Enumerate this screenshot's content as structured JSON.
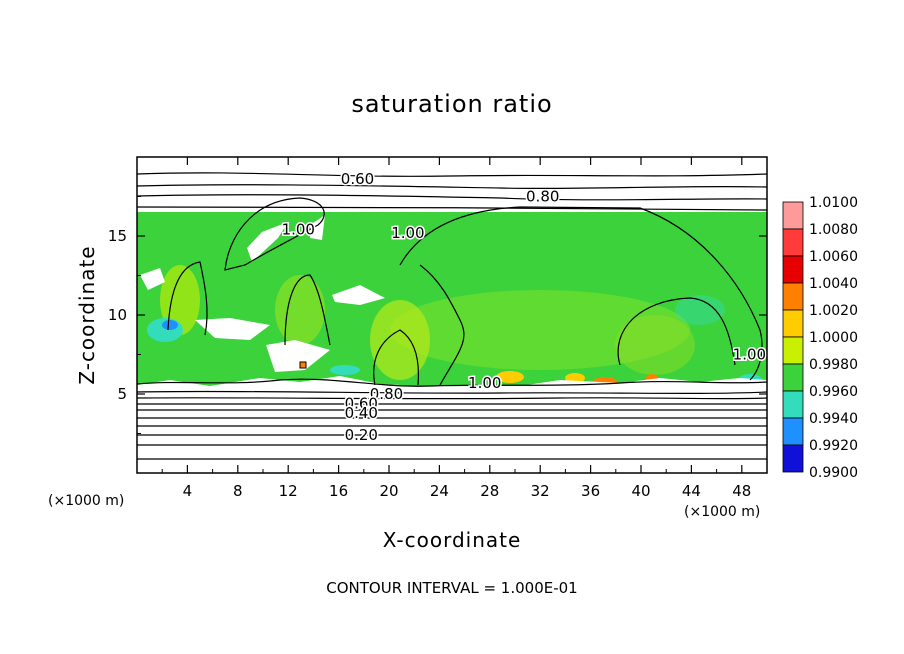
{
  "chart_data": {
    "type": "heatmap",
    "title": "saturation ratio",
    "xlabel": "X-coordinate",
    "ylabel": "Z-coordinate",
    "x_unit": "(×1000 m)",
    "y_unit": "(×1000 m)",
    "xlim": [
      0,
      50
    ],
    "ylim": [
      0,
      20
    ],
    "x_ticks": [
      "4",
      "8",
      "12",
      "16",
      "20",
      "24",
      "28",
      "32",
      "36",
      "40",
      "44",
      "48"
    ],
    "y_ticks": [
      "5",
      "10",
      "15"
    ],
    "colorbar": {
      "labels": [
        "1.0100",
        "1.0080",
        "1.0060",
        "1.0040",
        "1.0020",
        "1.0000",
        "0.9980",
        "0.9960",
        "0.9940",
        "0.9920",
        "0.9900"
      ],
      "colors": [
        "#ff9a9a",
        "#ff3b3b",
        "#e60000",
        "#ff7f00",
        "#ffcc00",
        "#c8f000",
        "#3cd23c",
        "#33ddbb",
        "#1e90ff",
        "#1010d8",
        "#5a1a9a"
      ]
    },
    "contour_labels": [
      {
        "text": "0.60",
        "x": 17.5,
        "y": 18.6
      },
      {
        "text": "0.80",
        "x": 32.2,
        "y": 17.5
      },
      {
        "text": "1.00",
        "x": 12.8,
        "y": 15.4
      },
      {
        "text": "1.00",
        "x": 21.5,
        "y": 15.2
      },
      {
        "text": "1.00",
        "x": 27.6,
        "y": 5.7
      },
      {
        "text": "1.00",
        "x": 48.6,
        "y": 7.5
      },
      {
        "text": "0.80",
        "x": 19.8,
        "y": 5.0
      },
      {
        "text": "0.60",
        "x": 17.8,
        "y": 4.4
      },
      {
        "text": "0.40",
        "x": 17.8,
        "y": 3.8
      },
      {
        "text": "0.20",
        "x": 17.8,
        "y": 2.4
      }
    ],
    "contour_interval_text": "CONTOUR INTERVAL = 1.000E-01",
    "grid": false,
    "legend": "right"
  }
}
